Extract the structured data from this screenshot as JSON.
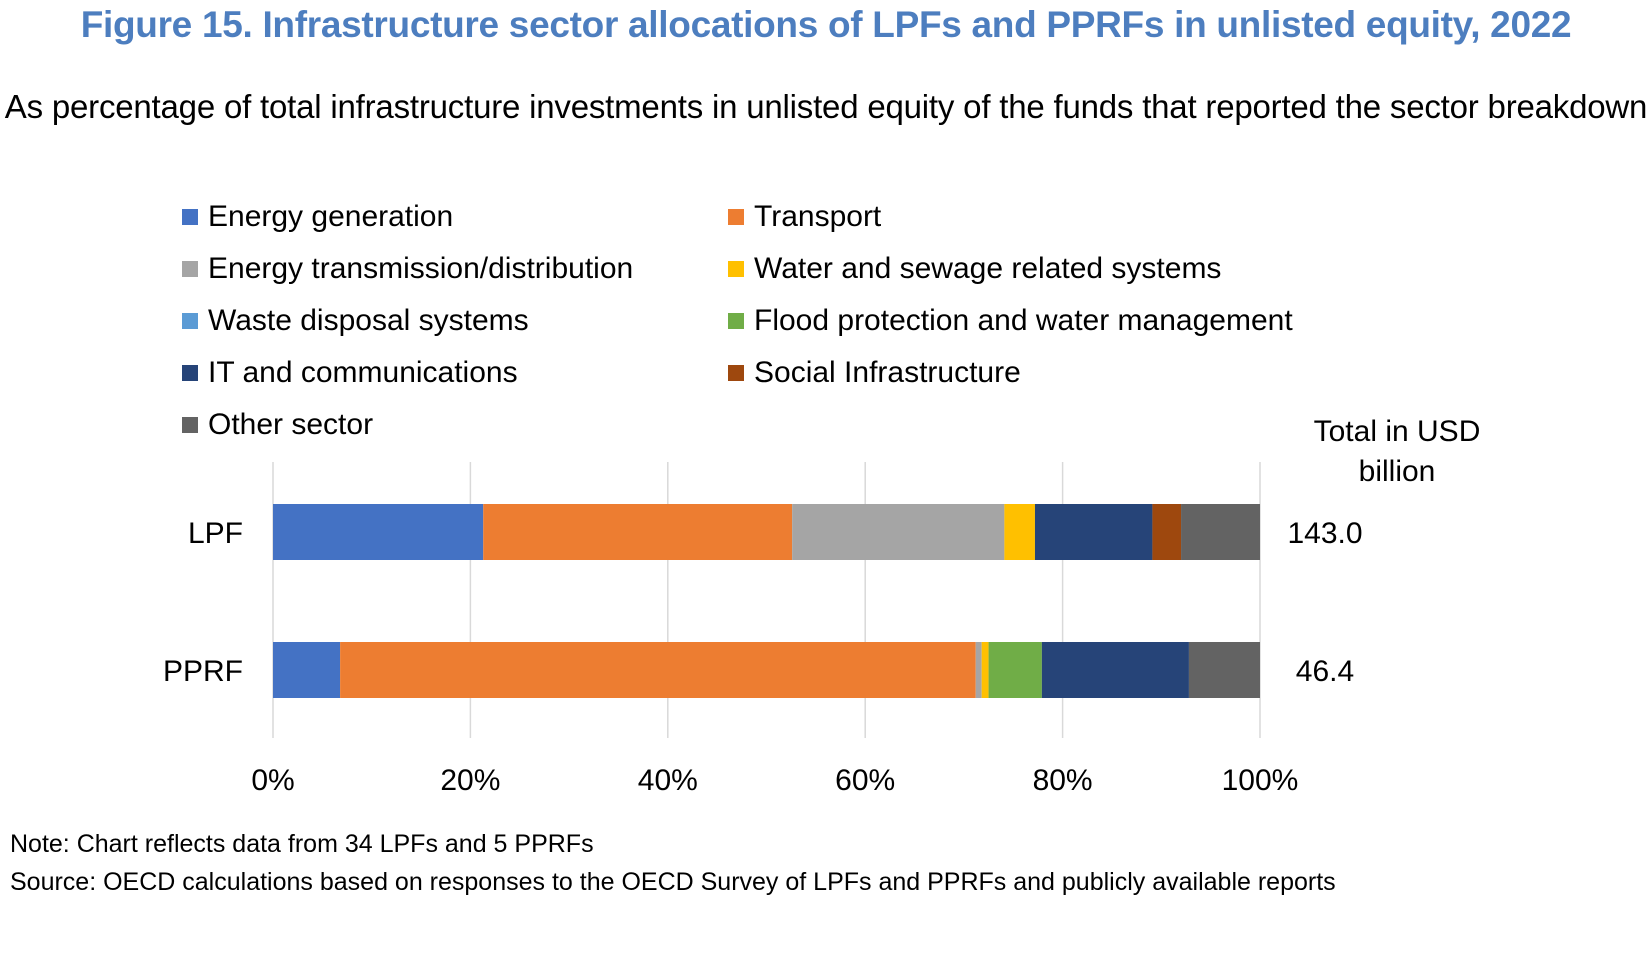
{
  "title": "Figure 15. Infrastructure sector allocations of LPFs and PPRFs in unlisted equity, 2022",
  "subtitle": "As percentage of total infrastructure investments in unlisted equity of the funds that reported the sector breakdown",
  "totals_header": "Total in USD billion",
  "note": "Note: Chart reflects data from 34 LPFs and 5 PPRFs",
  "source": "Source: OECD calculations based on responses to the OECD Survey of LPFs and PPRFs and publicly available reports",
  "chart_data": {
    "type": "bar",
    "orientation": "horizontal",
    "stacked": true,
    "categories": [
      "LPF",
      "PPRF"
    ],
    "xlim": [
      0,
      100
    ],
    "x_ticks": [
      "0%",
      "20%",
      "40%",
      "60%",
      "80%",
      "100%"
    ],
    "grid": true,
    "legend_position": "top",
    "series": [
      {
        "name": "Energy generation",
        "color": "#4472c4",
        "values": [
          21.3,
          6.8
        ]
      },
      {
        "name": "Transport",
        "color": "#ed7d31",
        "values": [
          31.3,
          64.4
        ]
      },
      {
        "name": "Energy transmission/distribution",
        "color": "#a5a5a5",
        "values": [
          21.5,
          0.6
        ]
      },
      {
        "name": "Water and sewage related systems",
        "color": "#ffc000",
        "values": [
          3.1,
          0.7
        ]
      },
      {
        "name": "Waste disposal systems",
        "color": "#5b9bd5",
        "values": [
          0.0,
          0.0
        ]
      },
      {
        "name": "Flood protection and water management",
        "color": "#70ad47",
        "values": [
          0.0,
          5.4
        ]
      },
      {
        "name": "IT and communications",
        "color": "#264478",
        "values": [
          11.9,
          14.9
        ]
      },
      {
        "name": "Social Infrastructure",
        "color": "#9e480e",
        "values": [
          2.9,
          0.0
        ]
      },
      {
        "name": "Other sector",
        "color": "#636363",
        "values": [
          8.0,
          7.2
        ]
      }
    ],
    "totals_usd_billion": [
      "143.0",
      "46.4"
    ]
  }
}
